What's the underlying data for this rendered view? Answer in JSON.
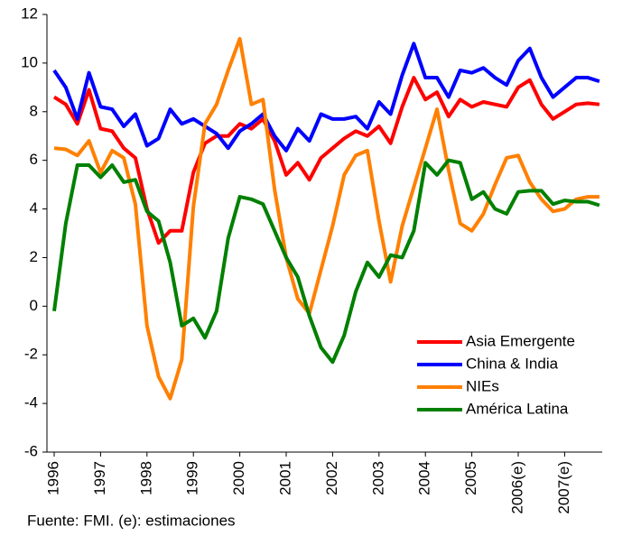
{
  "chart_data": {
    "type": "line",
    "categories": [
      "1996",
      null,
      null,
      null,
      "1997",
      null,
      null,
      null,
      "1998",
      null,
      null,
      null,
      "1999",
      null,
      null,
      null,
      "2000",
      null,
      null,
      null,
      "2001",
      null,
      null,
      null,
      "2002",
      null,
      null,
      null,
      "2003",
      null,
      null,
      null,
      "2004",
      null,
      null,
      null,
      "2005",
      null,
      null,
      null,
      "2006(e)",
      null,
      null,
      null,
      "2007(e)",
      null,
      null,
      null
    ],
    "series": [
      {
        "name": "Asia Emergente",
        "color": "#ff0000",
        "values": [
          8.6,
          8.3,
          7.5,
          8.9,
          7.3,
          7.2,
          6.5,
          6.1,
          4.0,
          2.6,
          3.1,
          3.1,
          5.5,
          6.7,
          7.0,
          7.0,
          7.5,
          7.3,
          7.7,
          6.8,
          5.4,
          5.9,
          5.2,
          6.1,
          6.5,
          6.9,
          7.2,
          7.0,
          7.4,
          6.7,
          8.2,
          9.4,
          8.5,
          8.8,
          7.8,
          8.5,
          8.2,
          8.4,
          8.3,
          8.2,
          9.0,
          9.3,
          8.3,
          7.7,
          8.0,
          8.3,
          8.35,
          8.3
        ]
      },
      {
        "name": "China & India",
        "color": "#0000ff",
        "values": [
          9.7,
          9.0,
          7.7,
          9.6,
          8.2,
          8.1,
          7.4,
          7.9,
          6.6,
          6.9,
          8.1,
          7.5,
          7.7,
          7.4,
          7.1,
          6.5,
          7.2,
          7.5,
          7.9,
          7.0,
          6.4,
          7.3,
          6.8,
          7.9,
          7.7,
          7.7,
          7.8,
          7.3,
          8.4,
          7.9,
          9.5,
          10.8,
          9.4,
          9.4,
          8.6,
          9.7,
          9.6,
          9.8,
          9.4,
          9.1,
          10.1,
          10.6,
          9.4,
          8.6,
          9.0,
          9.4,
          9.4,
          9.25
        ]
      },
      {
        "name": "NIEs",
        "color": "#ff8000",
        "values": [
          6.5,
          6.45,
          6.2,
          6.8,
          5.5,
          6.4,
          6.1,
          4.2,
          -0.8,
          -2.9,
          -3.8,
          -2.2,
          4.1,
          7.5,
          8.3,
          9.7,
          11.0,
          8.3,
          8.5,
          4.8,
          2.0,
          0.3,
          -0.3,
          1.5,
          3.3,
          5.4,
          6.2,
          6.4,
          3.5,
          1.0,
          3.3,
          4.9,
          6.5,
          8.1,
          5.6,
          3.4,
          3.1,
          3.8,
          5.0,
          6.1,
          6.2,
          5.1,
          4.4,
          3.9,
          4.0,
          4.4,
          4.5,
          4.5
        ]
      },
      {
        "name": "América Latina",
        "color": "#008000",
        "values": [
          -0.2,
          3.4,
          5.8,
          5.8,
          5.3,
          5.8,
          5.1,
          5.2,
          3.9,
          3.5,
          1.8,
          -0.8,
          -0.5,
          -1.3,
          -0.2,
          2.8,
          4.5,
          4.4,
          4.2,
          3.1,
          2.0,
          1.2,
          -0.4,
          -1.7,
          -2.3,
          -1.2,
          0.6,
          1.8,
          1.2,
          2.1,
          2.0,
          3.1,
          5.9,
          5.4,
          6.0,
          5.9,
          4.4,
          4.7,
          4.0,
          3.8,
          4.7,
          4.75,
          4.75,
          4.2,
          4.35,
          4.3,
          4.3,
          4.15
        ]
      }
    ],
    "ylim": [
      -6,
      12
    ],
    "yticks": [
      -6,
      -4,
      -2,
      0,
      2,
      4,
      6,
      8,
      10,
      12
    ],
    "grid": false,
    "legend": "lower right",
    "source": "Fuente: FMI. (e): estimaciones"
  }
}
